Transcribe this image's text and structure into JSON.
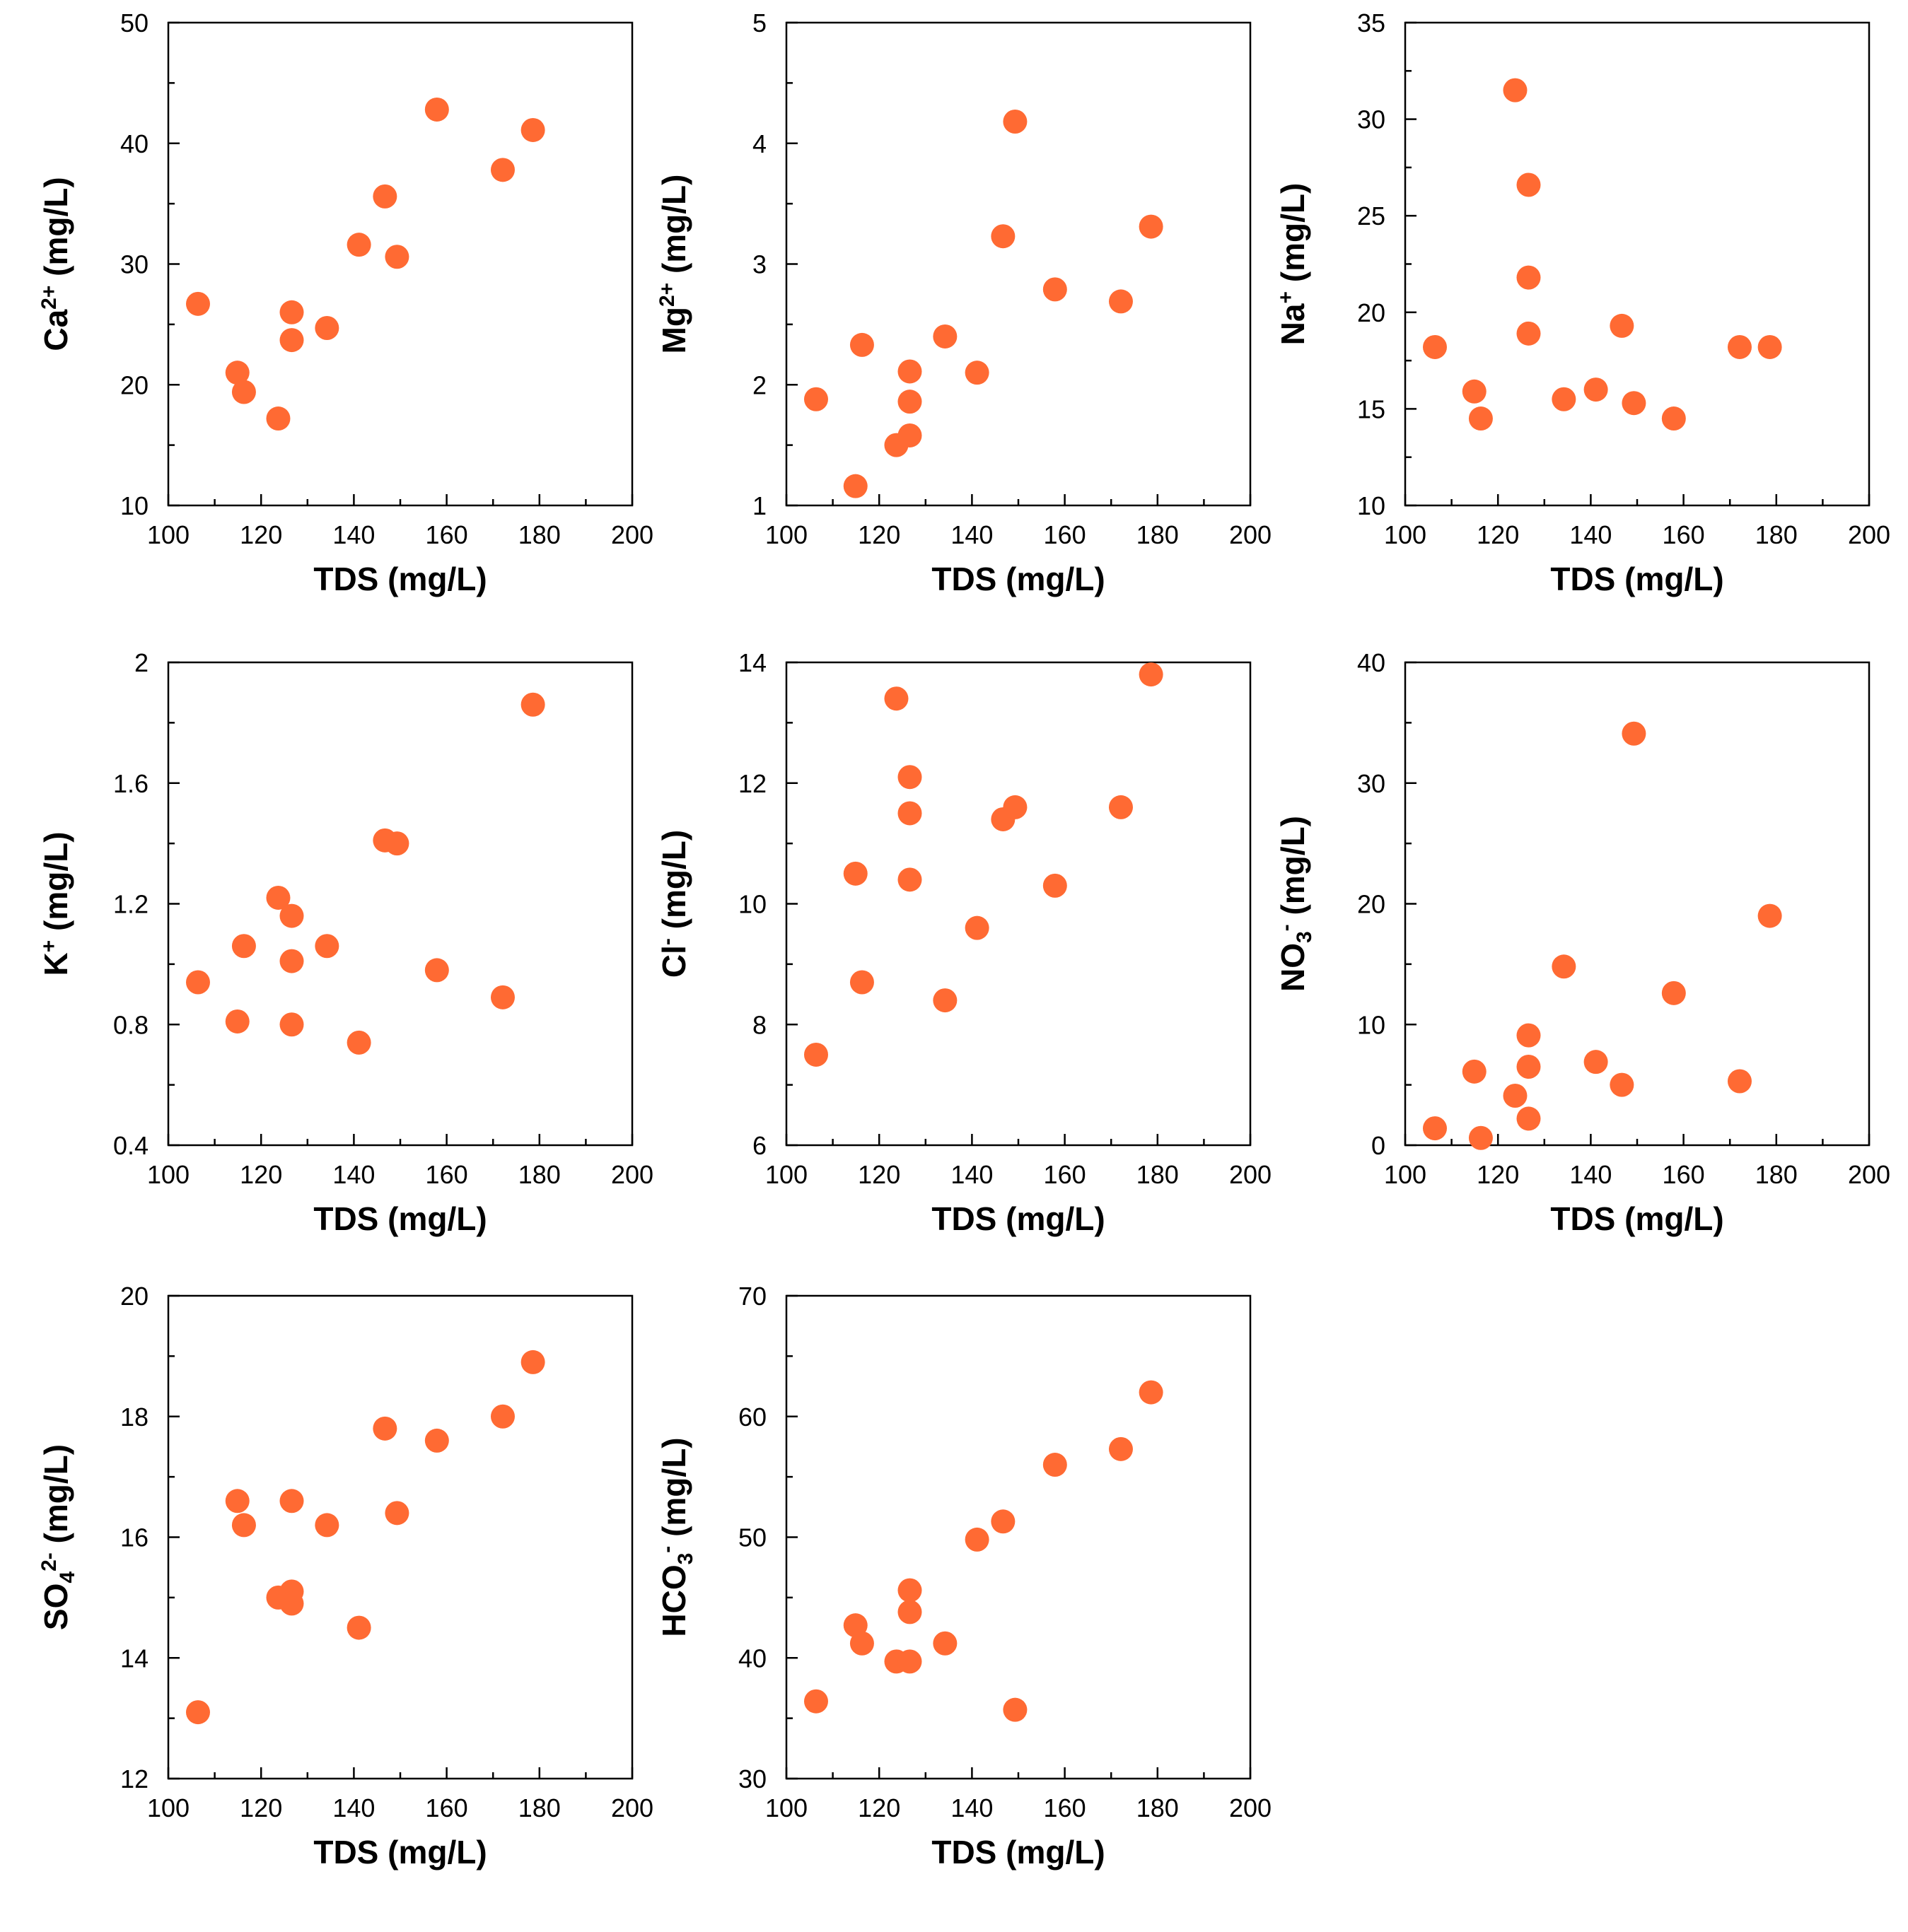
{
  "colors": {
    "marker": "#ff6a33",
    "axis": "#000000"
  },
  "chart_data": [
    {
      "type": "scatter",
      "xlabel": "TDS (mg/L)",
      "ylabel": {
        "base": "Ca",
        "sup": "2+",
        "sub": "",
        "unit": " (mg/L)"
      },
      "xlim": [
        100,
        200
      ],
      "ylim": [
        10,
        50
      ],
      "xticks": [
        100,
        120,
        140,
        160,
        180,
        200
      ],
      "yticks": [
        10,
        20,
        30,
        40,
        50
      ],
      "xtick_labels": [
        "100",
        "120",
        "140",
        "160",
        "180",
        "200"
      ],
      "ytick_labels": [
        "10",
        "20",
        "30",
        "40",
        "50"
      ],
      "points": [
        [
          106.4,
          26.7
        ],
        [
          114.9,
          21.0
        ],
        [
          116.3,
          19.4
        ],
        [
          123.7,
          17.2
        ],
        [
          126.6,
          26.0
        ],
        [
          126.6,
          23.7
        ],
        [
          134.2,
          24.7
        ],
        [
          141.1,
          31.6
        ],
        [
          146.7,
          35.6
        ],
        [
          149.3,
          30.6
        ],
        [
          157.9,
          42.8
        ],
        [
          172.1,
          37.8
        ],
        [
          178.6,
          41.1
        ]
      ]
    },
    {
      "type": "scatter",
      "xlabel": "TDS (mg/L)",
      "ylabel": {
        "base": "Mg",
        "sup": "2+",
        "sub": "",
        "unit": " (mg/L)"
      },
      "xlim": [
        100,
        200
      ],
      "ylim": [
        1,
        5
      ],
      "xticks": [
        100,
        120,
        140,
        160,
        180,
        200
      ],
      "yticks": [
        1,
        2,
        3,
        4,
        5
      ],
      "xtick_labels": [
        "100",
        "120",
        "140",
        "160",
        "180",
        "200"
      ],
      "ytick_labels": [
        "1",
        "2",
        "3",
        "4",
        "5"
      ],
      "points": [
        [
          106.4,
          1.88
        ],
        [
          114.9,
          1.16
        ],
        [
          116.3,
          2.33
        ],
        [
          123.7,
          1.5
        ],
        [
          126.6,
          1.58
        ],
        [
          126.6,
          1.86
        ],
        [
          126.6,
          2.11
        ],
        [
          134.2,
          2.4
        ],
        [
          141.1,
          2.1
        ],
        [
          146.7,
          3.23
        ],
        [
          149.3,
          4.18
        ],
        [
          157.9,
          2.79
        ],
        [
          172.1,
          2.69
        ],
        [
          178.6,
          3.31
        ]
      ]
    },
    {
      "type": "scatter",
      "xlabel": "TDS (mg/L)",
      "ylabel": {
        "base": "Na",
        "sup": "+",
        "sub": "",
        "unit": " (mg/L)"
      },
      "xlim": [
        100,
        200
      ],
      "ylim": [
        10,
        35
      ],
      "xticks": [
        100,
        120,
        140,
        160,
        180,
        200
      ],
      "yticks": [
        10,
        15,
        20,
        25,
        30,
        35
      ],
      "xtick_labels": [
        "100",
        "120",
        "140",
        "160",
        "180",
        "200"
      ],
      "ytick_labels": [
        "10",
        "15",
        "20",
        "25",
        "30",
        "35"
      ],
      "points": [
        [
          106.4,
          18.2
        ],
        [
          114.9,
          15.9
        ],
        [
          116.3,
          14.5
        ],
        [
          123.7,
          31.5
        ],
        [
          126.6,
          26.6
        ],
        [
          126.6,
          21.8
        ],
        [
          126.6,
          18.9
        ],
        [
          134.2,
          15.5
        ],
        [
          141.1,
          16.0
        ],
        [
          146.7,
          19.3
        ],
        [
          149.3,
          15.3
        ],
        [
          157.9,
          14.5
        ],
        [
          172.1,
          18.2
        ],
        [
          178.6,
          18.2
        ]
      ]
    },
    {
      "type": "scatter",
      "xlabel": "TDS (mg/L)",
      "ylabel": {
        "base": "K",
        "sup": "+",
        "sub": "",
        "unit": " (mg/L)"
      },
      "xlim": [
        100,
        200
      ],
      "ylim": [
        0.4,
        2.0
      ],
      "xticks": [
        100,
        120,
        140,
        160,
        180,
        200
      ],
      "yticks": [
        0.4,
        0.8,
        1.2,
        1.6,
        2.0
      ],
      "xtick_labels": [
        "100",
        "120",
        "140",
        "160",
        "180",
        "200"
      ],
      "ytick_labels": [
        "0.4",
        "0.8",
        "1.2",
        "1.6",
        "2"
      ],
      "points": [
        [
          106.4,
          0.94
        ],
        [
          114.9,
          0.81
        ],
        [
          116.3,
          1.06
        ],
        [
          123.7,
          1.22
        ],
        [
          126.6,
          1.16
        ],
        [
          126.6,
          1.01
        ],
        [
          126.6,
          0.8
        ],
        [
          134.2,
          1.06
        ],
        [
          141.1,
          0.74
        ],
        [
          146.7,
          1.41
        ],
        [
          149.3,
          1.4
        ],
        [
          157.9,
          0.98
        ],
        [
          172.1,
          0.89
        ],
        [
          178.6,
          1.86
        ]
      ]
    },
    {
      "type": "scatter",
      "xlabel": "TDS (mg/L)",
      "ylabel": {
        "base": "Cl",
        "sup": "-",
        "sub": "",
        "unit": " (mg/L)"
      },
      "xlim": [
        100,
        200
      ],
      "ylim": [
        6,
        14
      ],
      "xticks": [
        100,
        120,
        140,
        160,
        180,
        200
      ],
      "yticks": [
        6,
        8,
        10,
        12,
        14
      ],
      "xtick_labels": [
        "100",
        "120",
        "140",
        "160",
        "180",
        "200"
      ],
      "ytick_labels": [
        "6",
        "8",
        "10",
        "12",
        "14"
      ],
      "points": [
        [
          106.4,
          7.5
        ],
        [
          114.9,
          10.5
        ],
        [
          116.3,
          8.7
        ],
        [
          123.7,
          13.4
        ],
        [
          126.6,
          12.1
        ],
        [
          126.6,
          11.5
        ],
        [
          126.6,
          10.4
        ],
        [
          134.2,
          8.4
        ],
        [
          141.1,
          9.6
        ],
        [
          146.7,
          11.4
        ],
        [
          149.3,
          11.6
        ],
        [
          157.9,
          10.3
        ],
        [
          172.1,
          11.6
        ],
        [
          178.6,
          13.8
        ]
      ]
    },
    {
      "type": "scatter",
      "xlabel": "TDS (mg/L)",
      "ylabel": {
        "base": "NO",
        "sup": "-",
        "sub": "3",
        "unit": " (mg/L)"
      },
      "xlim": [
        100,
        200
      ],
      "ylim": [
        0,
        40
      ],
      "xticks": [
        100,
        120,
        140,
        160,
        180,
        200
      ],
      "yticks": [
        0,
        10,
        20,
        30,
        40
      ],
      "xtick_labels": [
        "100",
        "120",
        "140",
        "160",
        "180",
        "200"
      ],
      "ytick_labels": [
        "0",
        "10",
        "20",
        "30",
        "40"
      ],
      "points": [
        [
          106.4,
          1.4
        ],
        [
          114.9,
          6.1
        ],
        [
          116.3,
          0.6
        ],
        [
          123.7,
          4.1
        ],
        [
          126.6,
          9.1
        ],
        [
          126.6,
          6.5
        ],
        [
          126.6,
          2.2
        ],
        [
          134.2,
          14.8
        ],
        [
          141.1,
          6.9
        ],
        [
          146.7,
          5.0
        ],
        [
          149.3,
          34.1
        ],
        [
          157.9,
          12.6
        ],
        [
          172.1,
          5.3
        ],
        [
          178.6,
          19.0
        ]
      ]
    },
    {
      "type": "scatter",
      "xlabel": "TDS (mg/L)",
      "ylabel": {
        "base": "SO",
        "sup": "2-",
        "sub": "4",
        "unit": " (mg/L)"
      },
      "xlim": [
        100,
        200
      ],
      "ylim": [
        12,
        20
      ],
      "xticks": [
        100,
        120,
        140,
        160,
        180,
        200
      ],
      "yticks": [
        12,
        14,
        16,
        18,
        20
      ],
      "xtick_labels": [
        "100",
        "120",
        "140",
        "160",
        "180",
        "200"
      ],
      "ytick_labels": [
        "12",
        "14",
        "16",
        "18",
        "20"
      ],
      "points": [
        [
          106.4,
          13.1
        ],
        [
          114.9,
          16.6
        ],
        [
          116.3,
          16.2
        ],
        [
          123.7,
          15.0
        ],
        [
          126.6,
          16.6
        ],
        [
          126.6,
          15.1
        ],
        [
          126.6,
          14.9
        ],
        [
          134.2,
          16.2
        ],
        [
          141.1,
          14.5
        ],
        [
          146.7,
          17.8
        ],
        [
          149.3,
          16.4
        ],
        [
          157.9,
          17.6
        ],
        [
          172.1,
          18.0
        ],
        [
          178.6,
          18.9
        ]
      ]
    },
    {
      "type": "scatter",
      "xlabel": "TDS (mg/L)",
      "ylabel": {
        "base": "HCO",
        "sup": "-",
        "sub": "3",
        "unit": " (mg/L)"
      },
      "xlim": [
        100,
        200
      ],
      "ylim": [
        30,
        70
      ],
      "xticks": [
        100,
        120,
        140,
        160,
        180,
        200
      ],
      "yticks": [
        30,
        40,
        50,
        60,
        70
      ],
      "xtick_labels": [
        "100",
        "120",
        "140",
        "160",
        "180",
        "200"
      ],
      "ytick_labels": [
        "30",
        "40",
        "50",
        "60",
        "70"
      ],
      "points": [
        [
          106.4,
          36.4
        ],
        [
          114.9,
          42.7
        ],
        [
          116.3,
          41.2
        ],
        [
          123.7,
          39.7
        ],
        [
          126.6,
          39.7
        ],
        [
          126.6,
          43.8
        ],
        [
          126.6,
          45.6
        ],
        [
          134.2,
          41.2
        ],
        [
          141.1,
          49.8
        ],
        [
          146.7,
          51.3
        ],
        [
          149.3,
          35.7
        ],
        [
          157.9,
          56.0
        ],
        [
          172.1,
          57.3
        ],
        [
          178.6,
          62.0
        ]
      ]
    }
  ]
}
